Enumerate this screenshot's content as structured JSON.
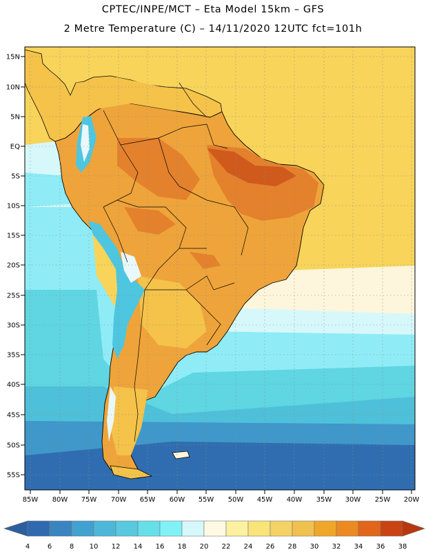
{
  "header": {
    "line1": "CPTEC/INPE/MCT  –  Eta Model 15km  –  GFS",
    "line2": "2 Metre Temperature (C)  –  14/11/2020 12UTC fct=101h"
  },
  "map": {
    "lat_labels": [
      "15N",
      "10N",
      "5N",
      "EQ",
      "5S",
      "10S",
      "15S",
      "20S",
      "25S",
      "30S",
      "35S",
      "40S",
      "45S",
      "50S",
      "55S"
    ],
    "lon_labels": [
      "85W",
      "80W",
      "75W",
      "70W",
      "65W",
      "60W",
      "55W",
      "50W",
      "45W",
      "40W",
      "35W",
      "30W",
      "25W",
      "20W"
    ],
    "colors": {
      "ocean_cold": "#2f6db0",
      "ocean_mid": "#3f98c9",
      "ocean_cool": "#4fc0d9",
      "ocean_teal": "#5fd6e2",
      "ocean_light": "#8fecf6",
      "ocean_pale": "#d7f8fb",
      "cream": "#fdf6dc",
      "sea_warm": "#f8d45a",
      "land_yellow": "#f5c24a",
      "land_orange": "#eea43a",
      "land_deep": "#e4812c",
      "land_hot": "#cf5a1c",
      "mountain": "#4ec6e0",
      "snow": "#e8f8fb",
      "border": "#000000"
    }
  },
  "colorbar": {
    "colors": [
      "#2f6aaf",
      "#3a84c0",
      "#41a2cf",
      "#4db7d9",
      "#58c9df",
      "#67dfe9",
      "#80f2f7",
      "#d6f7fb",
      "#fff9e3",
      "#fcf1a0",
      "#f9e47a",
      "#f4d265",
      "#f0c14f",
      "#f0a628",
      "#ec8a22",
      "#e1651b",
      "#c94412"
    ],
    "left_arrow_color": "#2d5f9e",
    "right_arrow_color": "#b9370f",
    "labels": [
      "4",
      "6",
      "8",
      "10",
      "12",
      "14",
      "16",
      "18",
      "20",
      "22",
      "24",
      "26",
      "28",
      "30",
      "32",
      "34",
      "36",
      "38"
    ]
  }
}
